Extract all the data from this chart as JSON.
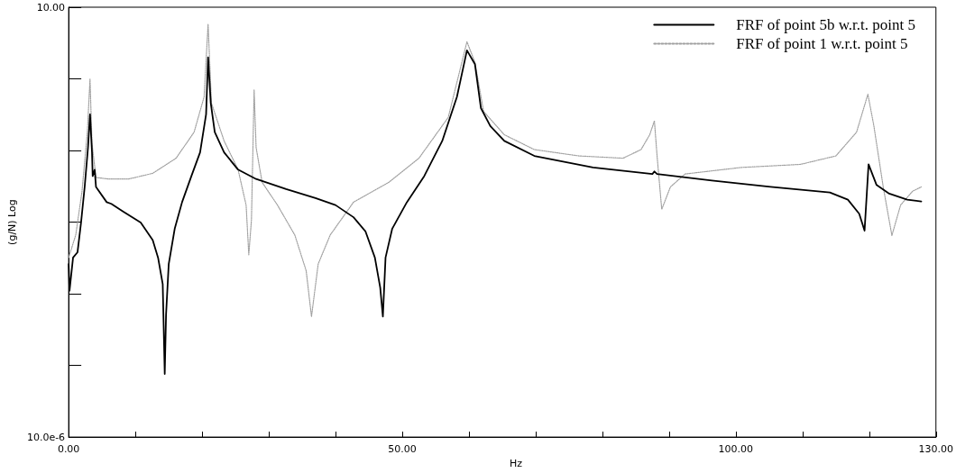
{
  "chart_data": {
    "type": "line",
    "xlabel": "Hz",
    "ylabel": "(g/N) Log",
    "log": "y",
    "legend": "top right",
    "grid": false,
    "marker": "none",
    "xlim": [
      0,
      130
    ],
    "ylim": [
      1e-05,
      10
    ],
    "xticks": [
      {
        "value": 0,
        "label": "0.00"
      },
      {
        "value": 10,
        "label": null
      },
      {
        "value": 20,
        "label": null
      },
      {
        "value": 30,
        "label": null
      },
      {
        "value": 40,
        "label": null
      },
      {
        "value": 50,
        "label": "50.00"
      },
      {
        "value": 60,
        "label": null
      },
      {
        "value": 70,
        "label": null
      },
      {
        "value": 80,
        "label": null
      },
      {
        "value": 90,
        "label": null
      },
      {
        "value": 100,
        "label": "100.00"
      },
      {
        "value": 110,
        "label": null
      },
      {
        "value": 120,
        "label": null
      },
      {
        "value": 130,
        "label": "130.00"
      }
    ],
    "yticks": [
      {
        "value": 1e-05,
        "label": "10.0e-6"
      },
      {
        "value": 0.0001,
        "label": null
      },
      {
        "value": 0.001,
        "label": null
      },
      {
        "value": 0.01,
        "label": null
      },
      {
        "value": 0.1,
        "label": null
      },
      {
        "value": 1,
        "label": null
      },
      {
        "value": 10,
        "label": "10.00"
      }
    ],
    "series": [
      {
        "name": "FRF of point 5b w.r.t. point 5",
        "color": "#000000",
        "line_style": "solid",
        "x": [
          0,
          0.13,
          0.66,
          1.33,
          1.86,
          2.4,
          2.9,
          3.2,
          3.5,
          3.6,
          3.9,
          4.1,
          5.7,
          6.4,
          8.1,
          10.8,
          12.6,
          13.4,
          14.1,
          14.4,
          14.6,
          15.0,
          15.9,
          17.0,
          18.4,
          19.7,
          20.6,
          20.9,
          21.3,
          21.9,
          23.3,
          25.4,
          28.1,
          32.6,
          37.0,
          40.0,
          42.7,
          44.5,
          45.9,
          46.7,
          47.1,
          47.5,
          48.5,
          50.7,
          53.3,
          56.0,
          58.2,
          59.7,
          60.9,
          61.8,
          63.2,
          65.3,
          69.8,
          78.6,
          87.5,
          87.8,
          88.2,
          96.4,
          105.2,
          114.1,
          116.8,
          118.5,
          119.3,
          119.9,
          121.1,
          123.0,
          125.7,
          127.8
        ],
        "values": [
          0.0026,
          0.0011,
          0.0032,
          0.0038,
          0.0099,
          0.031,
          0.11,
          0.32,
          0.094,
          0.044,
          0.054,
          0.031,
          0.019,
          0.018,
          0.0142,
          0.0099,
          0.0056,
          0.0032,
          0.00136,
          7.6e-05,
          0.00051,
          0.0026,
          0.0081,
          0.019,
          0.044,
          0.094,
          0.32,
          2.0,
          0.46,
          0.18,
          0.094,
          0.054,
          0.04,
          0.029,
          0.0217,
          0.0173,
          0.0117,
          0.0074,
          0.0032,
          0.00122,
          0.00048,
          0.0032,
          0.0081,
          0.019,
          0.044,
          0.136,
          0.56,
          2.5,
          1.6,
          0.39,
          0.22,
          0.136,
          0.084,
          0.058,
          0.047,
          0.051,
          0.047,
          0.038,
          0.031,
          0.026,
          0.0206,
          0.0131,
          0.0076,
          0.064,
          0.033,
          0.025,
          0.0206,
          0.0194
        ]
      },
      {
        "name": "FRF of point 1 w.r.t. point 5",
        "color": "#a0a0a0",
        "line_style": "dotted",
        "x": [
          0,
          1.06,
          2.0,
          2.8,
          3.2,
          3.5,
          4.1,
          6.0,
          9.0,
          12.6,
          16.1,
          18.8,
          20.3,
          20.9,
          21.4,
          23.3,
          25.4,
          26.6,
          27.0,
          27.4,
          27.8,
          28.1,
          29.0,
          31.3,
          33.9,
          35.6,
          36.4,
          37.4,
          39.2,
          42.7,
          48.0,
          52.5,
          56.9,
          59.7,
          60.9,
          62.2,
          65.3,
          69.8,
          76.5,
          83.1,
          85.8,
          87.1,
          87.8,
          88.2,
          88.9,
          90.2,
          92.4,
          100.8,
          109.7,
          115.0,
          118.1,
          119.8,
          120.7,
          122.1,
          123.4,
          124.7,
          126.5,
          127.8
        ],
        "values": [
          0.0032,
          0.0066,
          0.027,
          0.18,
          0.99,
          0.125,
          0.042,
          0.04,
          0.04,
          0.048,
          0.078,
          0.18,
          0.56,
          5.8,
          0.46,
          0.136,
          0.054,
          0.0173,
          0.0035,
          0.0107,
          0.7,
          0.11,
          0.036,
          0.0173,
          0.0066,
          0.0021,
          0.00048,
          0.0026,
          0.0066,
          0.019,
          0.036,
          0.078,
          0.29,
          3.3,
          1.7,
          0.35,
          0.166,
          0.103,
          0.084,
          0.078,
          0.103,
          0.166,
          0.26,
          0.084,
          0.0151,
          0.031,
          0.047,
          0.058,
          0.064,
          0.084,
          0.18,
          0.61,
          0.22,
          0.031,
          0.0065,
          0.0173,
          0.027,
          0.031
        ]
      }
    ]
  }
}
